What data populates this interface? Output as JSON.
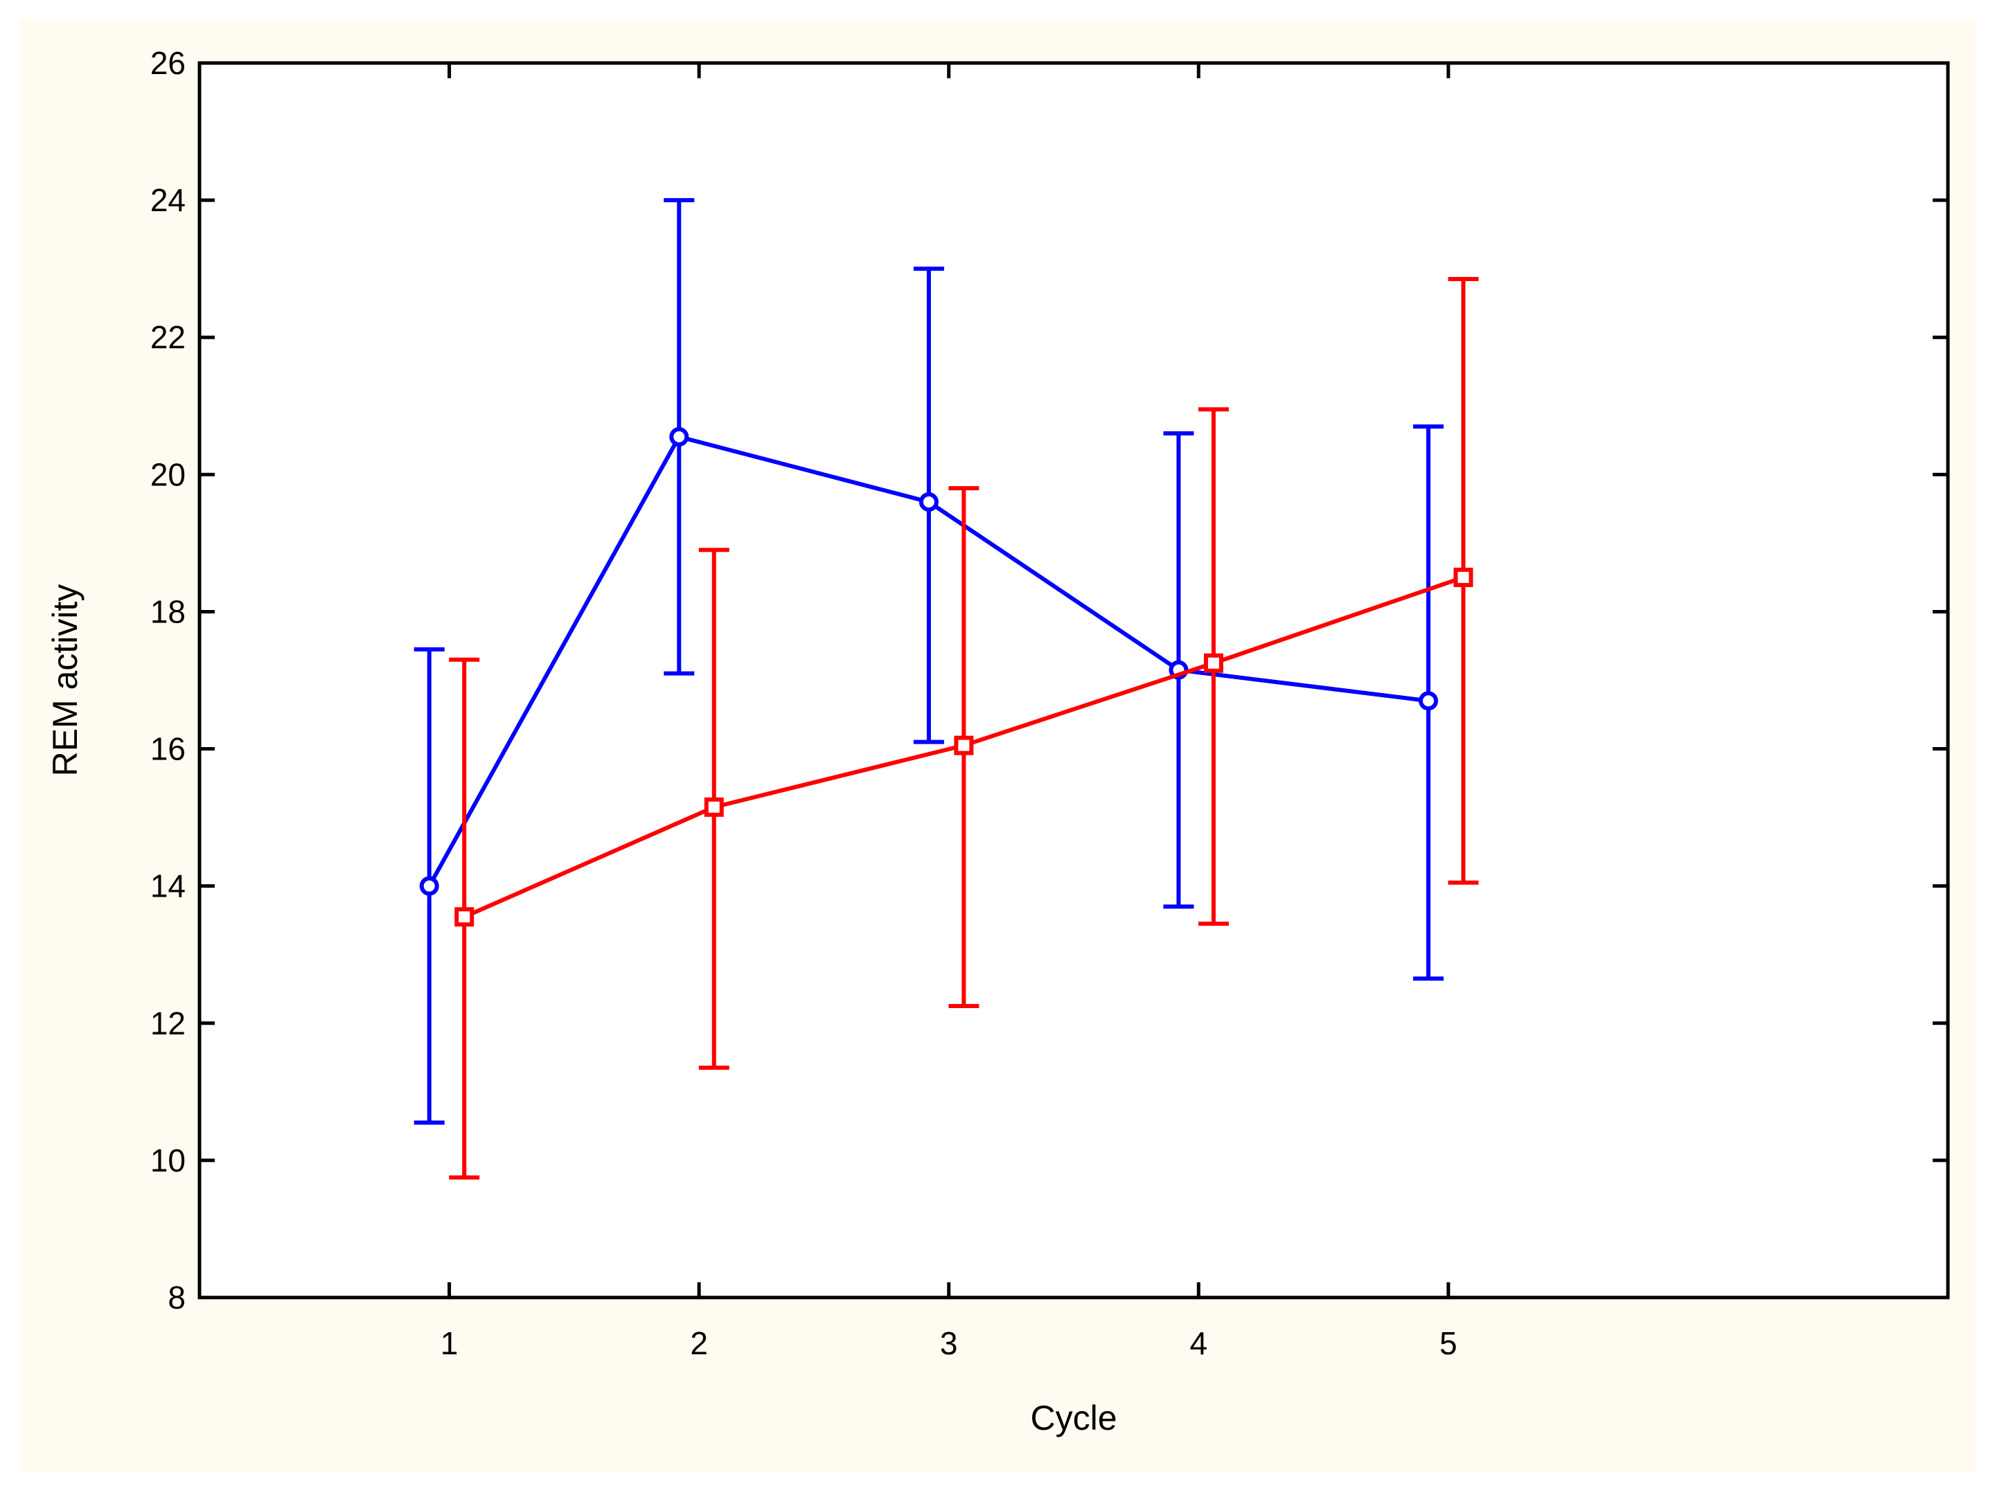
{
  "chart_data": {
    "type": "line",
    "title": "",
    "xlabel": "Cycle",
    "ylabel": "REM activity",
    "categories": [
      "1",
      "2",
      "3",
      "4",
      "5"
    ],
    "x": [
      1,
      2,
      3,
      4,
      5
    ],
    "xlim": [
      0,
      7
    ],
    "ylim": [
      8,
      26
    ],
    "yticks": [
      "8",
      "10",
      "12",
      "14",
      "16",
      "18",
      "20",
      "22",
      "24",
      "26"
    ],
    "grid": true,
    "error_bars": true,
    "series": [
      {
        "color": "#0000ff",
        "marker": "circle",
        "offset": -0.08,
        "values": [
          14.0,
          20.55,
          19.6,
          17.15,
          16.7
        ],
        "lower": [
          10.55,
          17.1,
          16.1,
          13.7,
          12.65
        ],
        "upper": [
          17.45,
          24.0,
          23.0,
          20.6,
          20.7
        ]
      },
      {
        "color": "#ff0000",
        "marker": "square",
        "offset": 0.06,
        "values": [
          13.55,
          15.15,
          16.05,
          17.25,
          18.5
        ],
        "lower": [
          9.75,
          11.35,
          12.25,
          13.45,
          14.05
        ],
        "upper": [
          17.3,
          18.9,
          19.8,
          20.95,
          22.85
        ]
      }
    ]
  }
}
